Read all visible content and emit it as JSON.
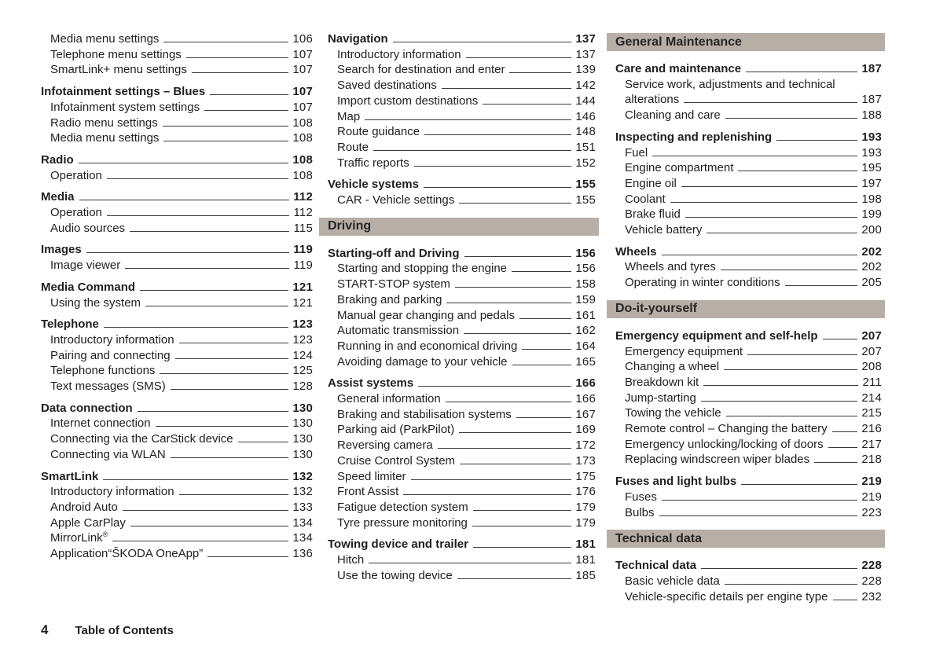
{
  "accent": {
    "section_bar_bg": "#b7aea6",
    "text_color": "#1f1f1f"
  },
  "footer": {
    "page_number": "4",
    "label": "Table of Contents"
  },
  "columns": [
    {
      "name": "left",
      "blocks": [
        {
          "type": "group",
          "entries": [
            {
              "label": "Media menu settings",
              "page": "106",
              "style": "sub"
            },
            {
              "label": "Telephone menu settings",
              "page": "107",
              "style": "sub"
            },
            {
              "label": "SmartLink+ menu settings",
              "page": "107",
              "style": "sub"
            }
          ]
        },
        {
          "type": "group",
          "entries": [
            {
              "label": "Infotainment settings – Blues",
              "page": "107",
              "style": "main"
            },
            {
              "label": "Infotainment system settings",
              "page": "107",
              "style": "sub"
            },
            {
              "label": "Radio menu settings",
              "page": "108",
              "style": "sub"
            },
            {
              "label": "Media menu settings",
              "page": "108",
              "style": "sub"
            }
          ]
        },
        {
          "type": "group",
          "entries": [
            {
              "label": "Radio",
              "page": "108",
              "style": "main"
            },
            {
              "label": "Operation",
              "page": "108",
              "style": "sub"
            }
          ]
        },
        {
          "type": "group",
          "entries": [
            {
              "label": "Media",
              "page": "112",
              "style": "main"
            },
            {
              "label": "Operation",
              "page": "112",
              "style": "sub"
            },
            {
              "label": "Audio sources",
              "page": "115",
              "style": "sub"
            }
          ]
        },
        {
          "type": "group",
          "entries": [
            {
              "label": "Images",
              "page": "119",
              "style": "main"
            },
            {
              "label": "Image viewer",
              "page": "119",
              "style": "sub"
            }
          ]
        },
        {
          "type": "group",
          "entries": [
            {
              "label": "Media Command",
              "page": "121",
              "style": "main"
            },
            {
              "label": "Using the system",
              "page": "121",
              "style": "sub"
            }
          ]
        },
        {
          "type": "group",
          "entries": [
            {
              "label": "Telephone",
              "page": "123",
              "style": "main"
            },
            {
              "label": "Introductory information",
              "page": "123",
              "style": "sub"
            },
            {
              "label": "Pairing and connecting",
              "page": "124",
              "style": "sub"
            },
            {
              "label": "Telephone functions",
              "page": "125",
              "style": "sub"
            },
            {
              "label": "Text messages (SMS)",
              "page": "128",
              "style": "sub"
            }
          ]
        },
        {
          "type": "group",
          "entries": [
            {
              "label": "Data connection",
              "page": "130",
              "style": "main"
            },
            {
              "label": "Internet connection",
              "page": "130",
              "style": "sub"
            },
            {
              "label": "Connecting via the CarStick device",
              "page": "130",
              "style": "sub"
            },
            {
              "label": "Connecting via WLAN",
              "page": "130",
              "style": "sub"
            }
          ]
        },
        {
          "type": "group",
          "entries": [
            {
              "label": "SmartLink",
              "page": "132",
              "style": "main"
            },
            {
              "label": "Introductory information",
              "page": "132",
              "style": "sub"
            },
            {
              "label": "Android Auto",
              "page": "133",
              "style": "sub"
            },
            {
              "label": "Apple CarPlay",
              "page": "134",
              "style": "sub"
            },
            {
              "label": "MirrorLink",
              "sup": "®",
              "page": "134",
              "style": "sub"
            },
            {
              "label": "Application“ŠKODA OneApp”",
              "page": "136",
              "style": "sub"
            }
          ]
        }
      ]
    },
    {
      "name": "middle",
      "blocks": [
        {
          "type": "group",
          "entries": [
            {
              "label": "Navigation",
              "page": "137",
              "style": "main"
            },
            {
              "label": "Introductory information",
              "page": "137",
              "style": "sub"
            },
            {
              "label": "Search for destination and enter",
              "page": "139",
              "style": "sub"
            },
            {
              "label": "Saved destinations",
              "page": "142",
              "style": "sub"
            },
            {
              "label": "Import custom destinations",
              "page": "144",
              "style": "sub"
            },
            {
              "label": "Map",
              "page": "146",
              "style": "sub"
            },
            {
              "label": "Route guidance",
              "page": "148",
              "style": "sub"
            },
            {
              "label": "Route",
              "page": "151",
              "style": "sub"
            },
            {
              "label": "Traffic reports",
              "page": "152",
              "style": "sub"
            }
          ]
        },
        {
          "type": "group",
          "entries": [
            {
              "label": "Vehicle systems",
              "page": "155",
              "style": "main"
            },
            {
              "label": "CAR - Vehicle settings",
              "page": "155",
              "style": "sub"
            }
          ]
        },
        {
          "type": "bar",
          "label": "Driving"
        },
        {
          "type": "group",
          "entries": [
            {
              "label": "Starting-off and Driving",
              "page": "156",
              "style": "main"
            },
            {
              "label": "Starting and stopping the engine",
              "page": "156",
              "style": "sub"
            },
            {
              "label": "START-STOP system",
              "page": "158",
              "style": "sub"
            },
            {
              "label": "Braking and parking",
              "page": "159",
              "style": "sub"
            },
            {
              "label": "Manual gear changing and pedals",
              "page": "161",
              "style": "sub"
            },
            {
              "label": "Automatic transmission",
              "page": "162",
              "style": "sub"
            },
            {
              "label": "Running in and economical driving",
              "page": "164",
              "style": "sub"
            },
            {
              "label": "Avoiding damage to your vehicle",
              "page": "165",
              "style": "sub"
            }
          ]
        },
        {
          "type": "group",
          "entries": [
            {
              "label": "Assist systems",
              "page": "166",
              "style": "main"
            },
            {
              "label": "General information",
              "page": "166",
              "style": "sub"
            },
            {
              "label": "Braking and stabilisation systems",
              "page": "167",
              "style": "sub"
            },
            {
              "label": "Parking aid (ParkPilot)",
              "page": "169",
              "style": "sub"
            },
            {
              "label": "Reversing camera",
              "page": "172",
              "style": "sub"
            },
            {
              "label": "Cruise Control System",
              "page": "173",
              "style": "sub"
            },
            {
              "label": "Speed limiter",
              "page": "175",
              "style": "sub"
            },
            {
              "label": "Front Assist",
              "page": "176",
              "style": "sub"
            },
            {
              "label": "Fatigue detection system",
              "page": "179",
              "style": "sub"
            },
            {
              "label": "Tyre pressure monitoring",
              "page": "179",
              "style": "sub"
            }
          ]
        },
        {
          "type": "group",
          "entries": [
            {
              "label": "Towing device and trailer",
              "page": "181",
              "style": "main"
            },
            {
              "label": "Hitch",
              "page": "181",
              "style": "sub"
            },
            {
              "label": "Use the towing device",
              "page": "185",
              "style": "sub"
            }
          ]
        }
      ]
    },
    {
      "name": "right",
      "blocks": [
        {
          "type": "bar",
          "label": "General Maintenance"
        },
        {
          "type": "group",
          "entries": [
            {
              "label": "Care and maintenance",
              "page": "187",
              "style": "main"
            },
            {
              "pre": "Service work, adjustments and technical",
              "label": "alterations",
              "page": "187",
              "style": "sub"
            },
            {
              "label": "Cleaning and care",
              "page": "188",
              "style": "sub"
            }
          ]
        },
        {
          "type": "group",
          "entries": [
            {
              "label": "Inspecting and replenishing",
              "page": "193",
              "style": "main"
            },
            {
              "label": "Fuel",
              "page": "193",
              "style": "sub"
            },
            {
              "label": "Engine compartment",
              "page": "195",
              "style": "sub"
            },
            {
              "label": "Engine oil",
              "page": "197",
              "style": "sub"
            },
            {
              "label": "Coolant",
              "page": "198",
              "style": "sub"
            },
            {
              "label": "Brake fluid",
              "page": "199",
              "style": "sub"
            },
            {
              "label": "Vehicle battery",
              "page": "200",
              "style": "sub"
            }
          ]
        },
        {
          "type": "group",
          "entries": [
            {
              "label": "Wheels",
              "page": "202",
              "style": "main"
            },
            {
              "label": "Wheels and tyres",
              "page": "202",
              "style": "sub"
            },
            {
              "label": "Operating in winter conditions",
              "page": "205",
              "style": "sub"
            }
          ]
        },
        {
          "type": "bar",
          "label": "Do-it-yourself"
        },
        {
          "type": "group",
          "entries": [
            {
              "label": "Emergency equipment and self-help",
              "page": "207",
              "style": "main"
            },
            {
              "label": "Emergency equipment",
              "page": "207",
              "style": "sub"
            },
            {
              "label": "Changing a wheel",
              "page": "208",
              "style": "sub"
            },
            {
              "label": "Breakdown kit",
              "page": "211",
              "style": "sub"
            },
            {
              "label": "Jump-starting",
              "page": "214",
              "style": "sub"
            },
            {
              "label": "Towing the vehicle",
              "page": "215",
              "style": "sub"
            },
            {
              "label": "Remote control – Changing the battery",
              "page": "216",
              "style": "sub"
            },
            {
              "label": "Emergency unlocking/locking of doors",
              "page": "217",
              "style": "sub"
            },
            {
              "label": "Replacing windscreen wiper blades",
              "page": "218",
              "style": "sub"
            }
          ]
        },
        {
          "type": "group",
          "entries": [
            {
              "label": "Fuses and light bulbs",
              "page": "219",
              "style": "main"
            },
            {
              "label": "Fuses",
              "page": "219",
              "style": "sub"
            },
            {
              "label": "Bulbs",
              "page": "223",
              "style": "sub"
            }
          ]
        },
        {
          "type": "bar",
          "label": "Technical data"
        },
        {
          "type": "group",
          "entries": [
            {
              "label": "Technical data",
              "page": "228",
              "style": "main"
            },
            {
              "label": "Basic vehicle data",
              "page": "228",
              "style": "sub"
            },
            {
              "label": "Vehicle-specific details per engine type",
              "page": "232",
              "style": "sub"
            }
          ]
        }
      ]
    }
  ]
}
